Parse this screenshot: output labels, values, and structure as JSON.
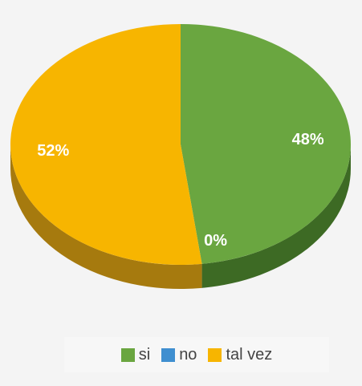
{
  "chart_data": {
    "type": "pie",
    "categories": [
      "si",
      "no",
      "tal vez"
    ],
    "values": [
      48,
      0,
      52
    ],
    "data_labels": [
      "48%",
      "0%",
      "52%"
    ],
    "colors": [
      "#6aa640",
      "#3f8fd0",
      "#f7b500"
    ],
    "side_colors": [
      "#3d6a24",
      "#2a5f8a",
      "#a67a0e"
    ],
    "style": "3d-tilted",
    "legend": {
      "position": "bottom",
      "items": [
        {
          "label": "si",
          "color": "#6aa640"
        },
        {
          "label": "no",
          "color": "#3f8fd0"
        },
        {
          "label": "tal vez",
          "color": "#f7b500"
        }
      ]
    }
  }
}
